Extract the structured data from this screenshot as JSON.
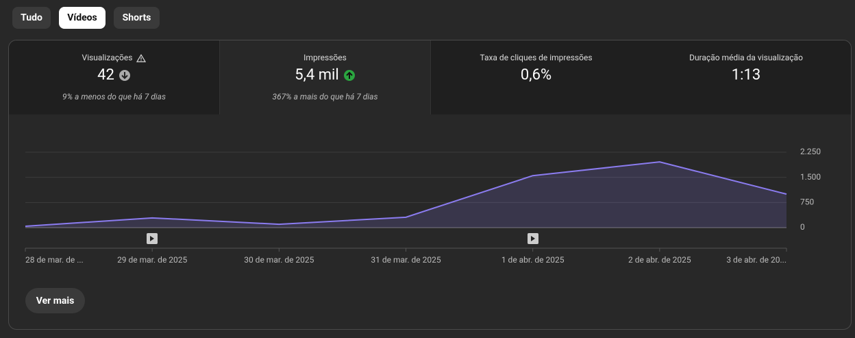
{
  "tabs": [
    "Tudo",
    "Vídeos",
    "Shorts"
  ],
  "metrics": [
    {
      "title": "Visualizações",
      "value": "42",
      "note": "9% a menos do que há 7 dias"
    },
    {
      "title": "Impressões",
      "value": "5,4 mil",
      "note": "367% a mais do que há 7 dias"
    },
    {
      "title": "Taxa de cliques de impressões",
      "value": "0,6%"
    },
    {
      "title": "Duração média da visualização",
      "value": "1:13"
    }
  ],
  "button": "Ver mais",
  "chart_data": {
    "type": "area",
    "categories": [
      "28 de mar. de ...",
      "29 de mar. de 2025",
      "30 de mar. de 2025",
      "31 de mar. de 2025",
      "1 de abr. de 2025",
      "2 de abr. de 2025",
      "3 de abr. de 20..."
    ],
    "values": [
      40,
      290,
      100,
      310,
      1550,
      1960,
      1000
    ],
    "color": "#8b7cf0",
    "ylim": [
      0,
      2250
    ],
    "yticks": [
      0,
      750,
      {
        "value": 1500,
        "label": "1.500"
      },
      {
        "value": 2250,
        "label": "2.250"
      }
    ],
    "grid": true
  }
}
